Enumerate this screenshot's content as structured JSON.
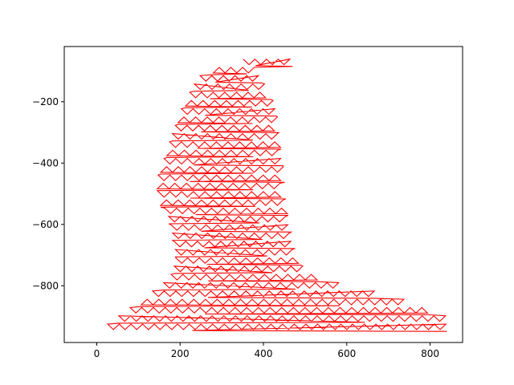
{
  "chart_data": {
    "type": "line",
    "title": "",
    "xlabel": "",
    "ylabel": "",
    "xlim": [
      -78,
      878
    ],
    "ylim": [
      -985,
      -20
    ],
    "y_inverted": false,
    "grid": false,
    "legend": "none",
    "x_ticks": [
      0,
      200,
      400,
      600,
      800
    ],
    "y_ticks": [
      -200,
      -400,
      -600,
      -800
    ],
    "x_tick_labels": [
      "0",
      "200",
      "400",
      "600",
      "800"
    ],
    "y_tick_labels": [
      "−200",
      "−400",
      "−600",
      "−800"
    ],
    "series": [
      {
        "color": "#ff0000",
        "shape": "zigzag raster fill of a head-and-shoulders silhouette",
        "outline_left": [
          [
            10,
            -950
          ],
          [
            30,
            -930
          ],
          [
            60,
            -900
          ],
          [
            100,
            -860
          ],
          [
            130,
            -830
          ],
          [
            160,
            -800
          ],
          [
            180,
            -770
          ],
          [
            190,
            -730
          ],
          [
            190,
            -700
          ],
          [
            185,
            -660
          ],
          [
            180,
            -620
          ],
          [
            175,
            -590
          ],
          [
            165,
            -560
          ],
          [
            150,
            -520
          ],
          [
            145,
            -480
          ],
          [
            148,
            -440
          ],
          [
            160,
            -400
          ],
          [
            170,
            -360
          ],
          [
            180,
            -320
          ],
          [
            190,
            -280
          ],
          [
            200,
            -240
          ],
          [
            215,
            -200
          ],
          [
            230,
            -160
          ],
          [
            250,
            -120
          ],
          [
            275,
            -100
          ],
          [
            300,
            -85
          ],
          [
            330,
            -75
          ],
          [
            360,
            -68
          ],
          [
            400,
            -62
          ],
          [
            440,
            -66
          ]
        ],
        "outline_right": [
          [
            470,
            -72
          ],
          [
            410,
            -88
          ],
          [
            380,
            -100
          ],
          [
            400,
            -130
          ],
          [
            415,
            -170
          ],
          [
            430,
            -220
          ],
          [
            435,
            -270
          ],
          [
            440,
            -320
          ],
          [
            445,
            -370
          ],
          [
            450,
            -420
          ],
          [
            452,
            -470
          ],
          [
            455,
            -520
          ],
          [
            460,
            -560
          ],
          [
            465,
            -600
          ],
          [
            470,
            -640
          ],
          [
            480,
            -680
          ],
          [
            490,
            -720
          ],
          [
            500,
            -745
          ],
          [
            530,
            -770
          ],
          [
            560,
            -790
          ],
          [
            610,
            -810
          ],
          [
            680,
            -830
          ],
          [
            760,
            -860
          ],
          [
            840,
            -900
          ],
          [
            840,
            -950
          ]
        ],
        "row_spacing": 27
      }
    ]
  }
}
